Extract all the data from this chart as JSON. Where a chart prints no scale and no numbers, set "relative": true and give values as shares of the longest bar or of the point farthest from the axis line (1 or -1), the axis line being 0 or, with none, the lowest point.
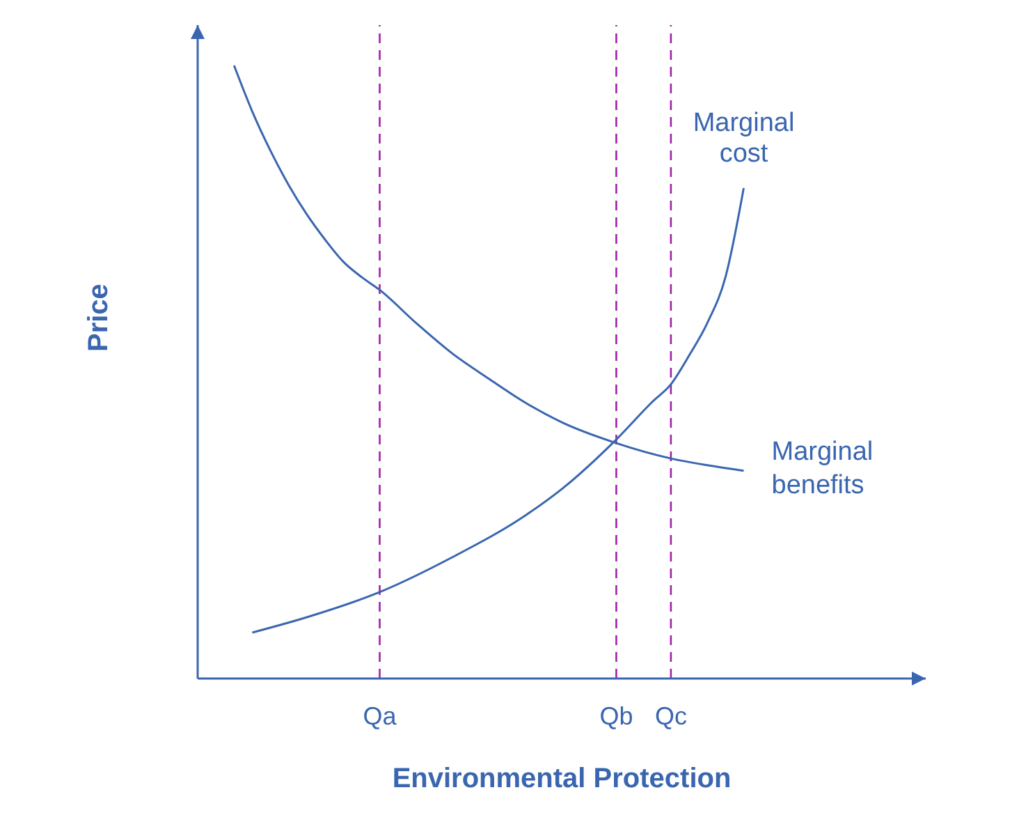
{
  "chart_data": {
    "type": "line",
    "relative": true,
    "xlabel": "Environmental Protection",
    "ylabel": "Price",
    "categories": [
      null,
      null,
      null,
      null,
      null,
      null,
      null,
      null,
      null,
      null,
      "Qa",
      null,
      null,
      null,
      null,
      null,
      null,
      null,
      null,
      null,
      null,
      null,
      null,
      "Qb",
      null,
      null,
      "Qc",
      null,
      null,
      null,
      null,
      null,
      null,
      null,
      null,
      null,
      null,
      null,
      null,
      null,
      null
    ],
    "series": [
      {
        "name": "Marginal cost",
        "color": "#3a66b0",
        "values": [
          null,
          null,
          null,
          0.075,
          null,
          null,
          0.1,
          null,
          null,
          null,
          0.141,
          null,
          null,
          null,
          0.198,
          null,
          null,
          null,
          0.266,
          null,
          0.309,
          null,
          null,
          0.39,
          null,
          0.452,
          0.48,
          0.527,
          0.58,
          0.655,
          0.8,
          null,
          null,
          null,
          null,
          null,
          null,
          null,
          null,
          null,
          null
        ]
      },
      {
        "name": "Marginal benefits",
        "color": "#3a66b0",
        "values": [
          null,
          null,
          1.0,
          0.925,
          0.861,
          0.805,
          0.757,
          0.716,
          0.68,
          0.655,
          0.634,
          null,
          0.58,
          null,
          0.53,
          null,
          0.489,
          null,
          0.45,
          null,
          0.418,
          null,
          null,
          0.384,
          null,
          null,
          0.359,
          null,
          0.348,
          null,
          0.339,
          null,
          null,
          null,
          null,
          null,
          null,
          null,
          null,
          null,
          null
        ]
      }
    ],
    "ref_lines": [
      {
        "axis": "x",
        "value": "Qa",
        "color": "#a020a8",
        "line_style": "dashed"
      },
      {
        "axis": "x",
        "value": "Qb",
        "color": "#a020a8",
        "line_style": "dashed"
      },
      {
        "axis": "x",
        "value": "Qc",
        "color": "#a020a8",
        "line_style": "dashed"
      }
    ]
  }
}
